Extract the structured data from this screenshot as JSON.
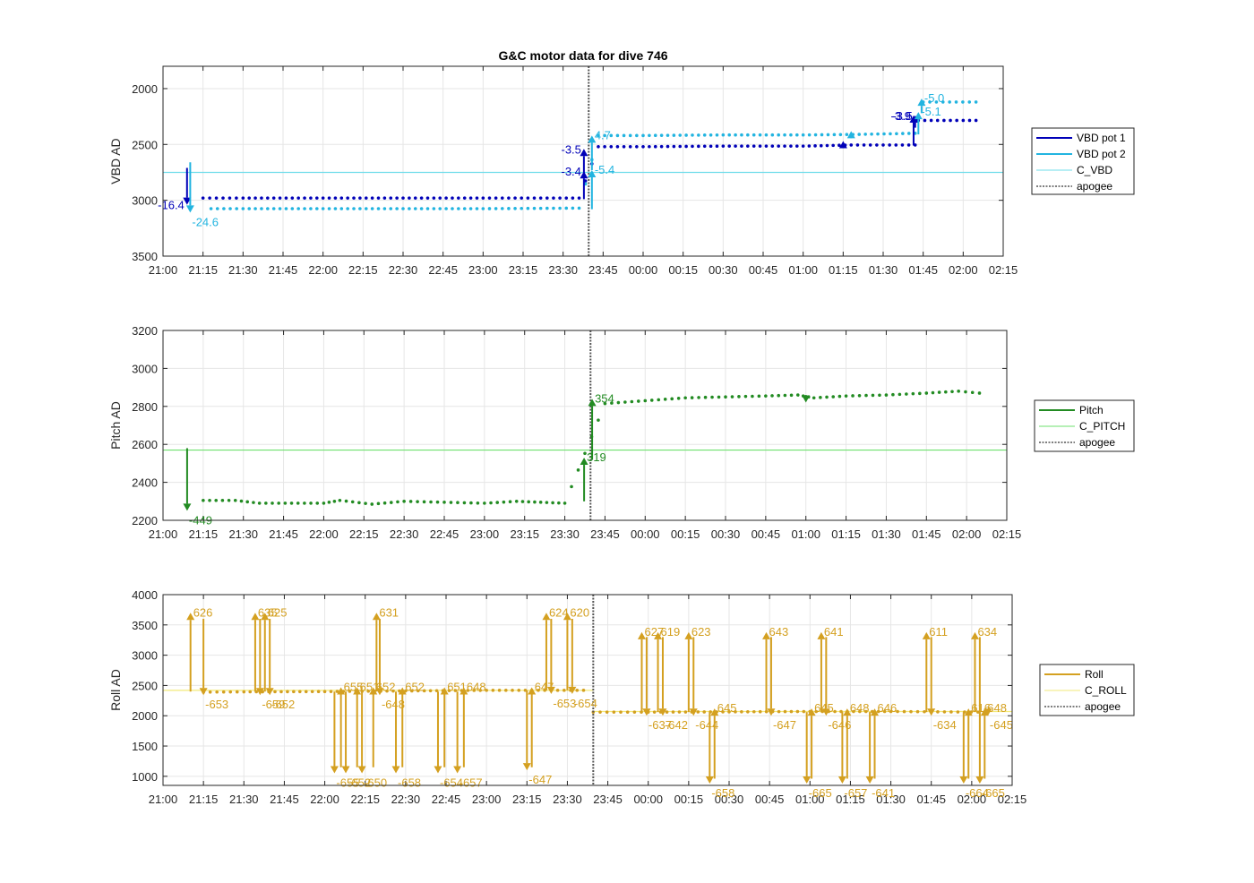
{
  "figure_title": "G&C motor data for dive 746",
  "colors": {
    "vbd1": "#0000b8",
    "vbd2": "#22b4e0",
    "c_vbd": "#6fdcea",
    "pitch": "#228b22",
    "c_pitch": "#6ee06e",
    "roll": "#d4a020",
    "c_roll": "#f2ea7a",
    "apogee": "#555555"
  },
  "chart_data": [
    {
      "type": "line",
      "title": "G&C motor data for dive 746",
      "xlabel": "",
      "ylabel": "VBD AD",
      "xlim_hours": [
        21.0,
        26.25
      ],
      "ylim": [
        1800,
        3500
      ],
      "y_reversed": true,
      "yticks": [
        2000,
        2500,
        3000,
        3500
      ],
      "xtick_labels": [
        "21:00",
        "21:15",
        "21:30",
        "21:45",
        "22:00",
        "22:15",
        "22:30",
        "22:45",
        "23:00",
        "23:15",
        "23:30",
        "23:45",
        "00:00",
        "00:15",
        "00:30",
        "00:45",
        "01:00",
        "01:15",
        "01:30",
        "01:45",
        "02:00",
        "02:15"
      ],
      "grid": true,
      "legend": {
        "placement": "right",
        "entries": [
          "VBD pot 1",
          "VBD pot 2",
          "C_VBD",
          "apogee"
        ]
      },
      "apogee_hours": 23.66,
      "reference_lines": [
        {
          "name": "C_VBD",
          "y": 2750
        }
      ],
      "series": [
        {
          "name": "VBD pot 1",
          "color_key": "vbd1",
          "points": [
            [
              21.25,
              2980
            ],
            [
              21.5,
              2980
            ],
            [
              22,
              2980
            ],
            [
              22.5,
              2980
            ],
            [
              23,
              2980
            ],
            [
              23.6,
              2980
            ],
            [
              23.72,
              2520
            ],
            [
              24,
              2520
            ],
            [
              24.5,
              2515
            ],
            [
              25,
              2515
            ],
            [
              25.3,
              2505
            ],
            [
              25.7,
              2505
            ],
            [
              25.72,
              2285
            ],
            [
              26.08,
              2285
            ]
          ]
        },
        {
          "name": "VBD pot 2",
          "color_key": "vbd2",
          "points": [
            [
              21.3,
              3075
            ],
            [
              21.5,
              3075
            ],
            [
              22,
              3075
            ],
            [
              22.5,
              3075
            ],
            [
              23,
              3075
            ],
            [
              23.6,
              3070
            ],
            [
              23.72,
              2420
            ],
            [
              24,
              2420
            ],
            [
              24.5,
              2415
            ],
            [
              25,
              2415
            ],
            [
              25.35,
              2410
            ],
            [
              25.7,
              2400
            ],
            [
              25.75,
              2120
            ],
            [
              26.08,
              2120
            ]
          ]
        }
      ],
      "arrows": [
        {
          "color_key": "vbd1",
          "x": 21.15,
          "y_from": 2710,
          "y_to": 3040,
          "label": "-16.4",
          "label_pos": "left"
        },
        {
          "color_key": "vbd2",
          "x": 21.17,
          "y_from": 2660,
          "y_to": 3110,
          "label": "-24.6",
          "label_pos": "below"
        },
        {
          "color_key": "vbd1",
          "x": 23.63,
          "y_from": 2990,
          "y_to": 2740,
          "label": "-3.4",
          "label_pos": "left"
        },
        {
          "color_key": "vbd1",
          "x": 23.63,
          "y_from": 2760,
          "y_to": 2540,
          "label": "-3.5",
          "label_pos": "left"
        },
        {
          "color_key": "vbd2",
          "x": 23.68,
          "y_from": 3080,
          "y_to": 2730,
          "label": "-5.4",
          "label_pos": "right"
        },
        {
          "color_key": "vbd2",
          "x": 23.68,
          "y_from": 2730,
          "y_to": 2420,
          "label": "4.7",
          "label_pos": "right"
        },
        {
          "color_key": "vbd1",
          "x": 25.25,
          "y_from": 2510,
          "y_to": 2470,
          "label": "",
          "label_pos": "none"
        },
        {
          "color_key": "vbd2",
          "x": 25.3,
          "y_from": 2420,
          "y_to": 2380,
          "label": "",
          "label_pos": "none"
        },
        {
          "color_key": "vbd1",
          "x": 25.69,
          "y_from": 2510,
          "y_to": 2240,
          "label": "-3.9",
          "label_pos": "left"
        },
        {
          "color_key": "vbd1",
          "x": 25.7,
          "y_from": 2350,
          "y_to": 2240,
          "label": "-3.5",
          "label_pos": "left"
        },
        {
          "color_key": "vbd2",
          "x": 25.72,
          "y_from": 2410,
          "y_to": 2210,
          "label": "-5.1",
          "label_pos": "right"
        },
        {
          "color_key": "vbd2",
          "x": 25.74,
          "y_from": 2220,
          "y_to": 2090,
          "label": "-5.0",
          "label_pos": "right"
        }
      ]
    },
    {
      "type": "line",
      "title": "",
      "xlabel": "",
      "ylabel": "Pitch AD",
      "xlim_hours": [
        21.0,
        26.25
      ],
      "ylim": [
        2200,
        3200
      ],
      "y_reversed": false,
      "yticks": [
        2200,
        2400,
        2600,
        2800,
        3000,
        3200
      ],
      "xtick_labels": [
        "21:00",
        "21:15",
        "21:30",
        "21:45",
        "22:00",
        "22:15",
        "22:30",
        "22:45",
        "23:00",
        "23:15",
        "23:30",
        "23:45",
        "00:00",
        "00:15",
        "00:30",
        "00:45",
        "01:00",
        "01:15",
        "01:30",
        "01:45",
        "02:00",
        "02:15"
      ],
      "grid": true,
      "legend": {
        "placement": "right",
        "entries": [
          "Pitch",
          "C_PITCH",
          "apogee"
        ]
      },
      "apogee_hours": 23.66,
      "reference_lines": [
        {
          "name": "C_PITCH",
          "y": 2570
        }
      ],
      "series": [
        {
          "name": "Pitch",
          "color_key": "pitch",
          "points": [
            [
              21.25,
              2305
            ],
            [
              21.45,
              2305
            ],
            [
              21.6,
              2290
            ],
            [
              22,
              2290
            ],
            [
              22.1,
              2305
            ],
            [
              22.3,
              2285
            ],
            [
              22.5,
              2300
            ],
            [
              22.75,
              2295
            ],
            [
              23,
              2290
            ],
            [
              23.2,
              2300
            ],
            [
              23.5,
              2290
            ],
            [
              23.75,
              2815
            ],
            [
              24,
              2830
            ],
            [
              24.25,
              2845
            ],
            [
              24.5,
              2850
            ],
            [
              24.75,
              2855
            ],
            [
              24.95,
              2860
            ],
            [
              25.05,
              2845
            ],
            [
              25.25,
              2855
            ],
            [
              25.5,
              2860
            ],
            [
              25.75,
              2870
            ],
            [
              25.95,
              2880
            ],
            [
              26.08,
              2870
            ]
          ]
        }
      ],
      "arrows": [
        {
          "color_key": "pitch",
          "x": 21.15,
          "y_from": 2580,
          "y_to": 2250,
          "label": "-449",
          "label_pos": "below"
        },
        {
          "color_key": "pitch",
          "x": 23.62,
          "y_from": 2300,
          "y_to": 2530,
          "label": "319",
          "label_pos": "right"
        },
        {
          "color_key": "pitch",
          "x": 23.67,
          "y_from": 2520,
          "y_to": 2840,
          "label": "354",
          "label_pos": "right"
        },
        {
          "color_key": "pitch",
          "x": 25.0,
          "y_from": 2860,
          "y_to": 2820,
          "label": "",
          "label_pos": "none"
        }
      ]
    },
    {
      "type": "line",
      "title": "",
      "xlabel": "",
      "ylabel": "Roll AD",
      "xlim_hours": [
        21.0,
        26.25
      ],
      "ylim": [
        850,
        4000
      ],
      "y_reversed": false,
      "yticks": [
        1000,
        1500,
        2000,
        2500,
        3000,
        3500,
        4000
      ],
      "xtick_labels": [
        "21:00",
        "21:15",
        "21:30",
        "21:45",
        "22:00",
        "22:15",
        "22:30",
        "22:45",
        "23:00",
        "23:15",
        "23:30",
        "23:45",
        "00:00",
        "00:15",
        "00:30",
        "00:45",
        "01:00",
        "01:15",
        "01:30",
        "01:45",
        "02:00",
        "02:15"
      ],
      "grid": true,
      "legend": {
        "placement": "right",
        "entries": [
          "Roll",
          "C_ROLL",
          "apogee"
        ]
      },
      "apogee_hours": 23.66,
      "reference_lines": [
        {
          "name": "C_ROLL",
          "y": 2420,
          "x_range": [
            21.0,
            23.66
          ]
        },
        {
          "name": "C_ROLL",
          "y": 2070,
          "x_range": [
            23.66,
            26.25
          ]
        }
      ],
      "series": [
        {
          "name": "Roll",
          "color_key": "roll",
          "points": [
            [
              21.25,
              2390
            ],
            [
              21.5,
              2395
            ],
            [
              22,
              2400
            ],
            [
              22.5,
              2410
            ],
            [
              23,
              2420
            ],
            [
              23.6,
              2420
            ]
          ]
        },
        {
          "name": "Roll",
          "color_key": "roll",
          "points": [
            [
              23.66,
              2060
            ],
            [
              24,
              2060
            ],
            [
              24.5,
              2065
            ],
            [
              25,
              2070
            ],
            [
              25.5,
              2070
            ],
            [
              26.08,
              2060
            ]
          ]
        }
      ],
      "arrows": [
        {
          "x": 21.17,
          "y_from": 2400,
          "y_to": 3700,
          "label": "626",
          "label_pos": "right"
        },
        {
          "x": 21.25,
          "y_from": 3600,
          "y_to": 2340,
          "label": "-653",
          "label_pos": "below"
        },
        {
          "x": 21.57,
          "y_from": 2400,
          "y_to": 3700,
          "label": "635",
          "label_pos": "right"
        },
        {
          "x": 21.6,
          "y_from": 3600,
          "y_to": 2340,
          "label": "-659",
          "label_pos": "below"
        },
        {
          "x": 21.63,
          "y_from": 2400,
          "y_to": 3700,
          "label": "625",
          "label_pos": "right"
        },
        {
          "x": 21.66,
          "y_from": 3600,
          "y_to": 2340,
          "label": "-652",
          "label_pos": "below"
        },
        {
          "x": 22.06,
          "y_from": 2400,
          "y_to": 1050,
          "label": "-655",
          "label_pos": "below"
        },
        {
          "x": 22.1,
          "y_from": 1150,
          "y_to": 2470,
          "label": "655",
          "label_pos": "right"
        },
        {
          "x": 22.13,
          "y_from": 2400,
          "y_to": 1050,
          "label": "-652",
          "label_pos": "below"
        },
        {
          "x": 22.2,
          "y_from": 1150,
          "y_to": 2470,
          "label": "651",
          "label_pos": "right"
        },
        {
          "x": 22.23,
          "y_from": 2400,
          "y_to": 1050,
          "label": "-650",
          "label_pos": "below"
        },
        {
          "x": 22.3,
          "y_from": 1150,
          "y_to": 2470,
          "label": "652",
          "label_pos": "right"
        },
        {
          "x": 22.32,
          "y_from": 2400,
          "y_to": 3700,
          "label": "631",
          "label_pos": "right"
        },
        {
          "x": 22.34,
          "y_from": 3600,
          "y_to": 2340,
          "label": "-648",
          "label_pos": "below"
        },
        {
          "x": 22.44,
          "y_from": 2400,
          "y_to": 1050,
          "label": "-658",
          "label_pos": "below"
        },
        {
          "x": 22.48,
          "y_from": 1150,
          "y_to": 2470,
          "label": "652",
          "label_pos": "right"
        },
        {
          "x": 22.7,
          "y_from": 2400,
          "y_to": 1050,
          "label": "-654",
          "label_pos": "below"
        },
        {
          "x": 22.74,
          "y_from": 1150,
          "y_to": 2470,
          "label": "651",
          "label_pos": "right"
        },
        {
          "x": 22.82,
          "y_from": 2400,
          "y_to": 1050,
          "label": "-657",
          "label_pos": "below"
        },
        {
          "x": 22.86,
          "y_from": 1150,
          "y_to": 2470,
          "label": "648",
          "label_pos": "right"
        },
        {
          "x": 23.25,
          "y_from": 2420,
          "y_to": 1100,
          "label": "-647",
          "label_pos": "below"
        },
        {
          "x": 23.28,
          "y_from": 1150,
          "y_to": 2470,
          "label": "647",
          "label_pos": "right"
        },
        {
          "x": 23.37,
          "y_from": 2420,
          "y_to": 3700,
          "label": "624",
          "label_pos": "right"
        },
        {
          "x": 23.4,
          "y_from": 3600,
          "y_to": 2360,
          "label": "-653",
          "label_pos": "below"
        },
        {
          "x": 23.5,
          "y_from": 2420,
          "y_to": 3700,
          "label": "620",
          "label_pos": "right"
        },
        {
          "x": 23.53,
          "y_from": 3600,
          "y_to": 2360,
          "label": "-654",
          "label_pos": "below"
        },
        {
          "x": 23.96,
          "y_from": 2060,
          "y_to": 3380,
          "label": "627",
          "label_pos": "right"
        },
        {
          "x": 23.99,
          "y_from": 3300,
          "y_to": 2000,
          "label": "-637",
          "label_pos": "below"
        },
        {
          "x": 24.06,
          "y_from": 2060,
          "y_to": 3380,
          "label": "619",
          "label_pos": "right"
        },
        {
          "x": 24.09,
          "y_from": 3300,
          "y_to": 2000,
          "label": "-642",
          "label_pos": "below"
        },
        {
          "x": 24.25,
          "y_from": 2060,
          "y_to": 3380,
          "label": "623",
          "label_pos": "right"
        },
        {
          "x": 24.28,
          "y_from": 3300,
          "y_to": 2000,
          "label": "-644",
          "label_pos": "below"
        },
        {
          "x": 24.38,
          "y_from": 2060,
          "y_to": 880,
          "label": "-658",
          "label_pos": "below"
        },
        {
          "x": 24.41,
          "y_from": 960,
          "y_to": 2120,
          "label": "645",
          "label_pos": "right"
        },
        {
          "x": 24.73,
          "y_from": 2060,
          "y_to": 3380,
          "label": "643",
          "label_pos": "right"
        },
        {
          "x": 24.76,
          "y_from": 3300,
          "y_to": 2000,
          "label": "-647",
          "label_pos": "below"
        },
        {
          "x": 24.98,
          "y_from": 2060,
          "y_to": 880,
          "label": "-665",
          "label_pos": "below"
        },
        {
          "x": 25.01,
          "y_from": 960,
          "y_to": 2120,
          "label": "645",
          "label_pos": "right"
        },
        {
          "x": 25.07,
          "y_from": 2060,
          "y_to": 3380,
          "label": "641",
          "label_pos": "right"
        },
        {
          "x": 25.1,
          "y_from": 3300,
          "y_to": 2000,
          "label": "-646",
          "label_pos": "below"
        },
        {
          "x": 25.2,
          "y_from": 2060,
          "y_to": 880,
          "label": "-657",
          "label_pos": "below"
        },
        {
          "x": 25.23,
          "y_from": 960,
          "y_to": 2120,
          "label": "648",
          "label_pos": "right"
        },
        {
          "x": 25.37,
          "y_from": 2060,
          "y_to": 880,
          "label": "-641",
          "label_pos": "below"
        },
        {
          "x": 25.4,
          "y_from": 960,
          "y_to": 2120,
          "label": "646",
          "label_pos": "right"
        },
        {
          "x": 25.72,
          "y_from": 2060,
          "y_to": 3380,
          "label": "611",
          "label_pos": "right"
        },
        {
          "x": 25.75,
          "y_from": 3300,
          "y_to": 2000,
          "label": "-634",
          "label_pos": "below"
        },
        {
          "x": 25.95,
          "y_from": 2060,
          "y_to": 880,
          "label": "-664",
          "label_pos": "below"
        },
        {
          "x": 25.98,
          "y_from": 960,
          "y_to": 2120,
          "label": "616",
          "label_pos": "right"
        },
        {
          "x": 26.02,
          "y_from": 2060,
          "y_to": 3380,
          "label": "634",
          "label_pos": "right"
        },
        {
          "x": 26.05,
          "y_from": 3300,
          "y_to": 880,
          "label": "-665",
          "label_pos": "below"
        },
        {
          "x": 26.08,
          "y_from": 960,
          "y_to": 2120,
          "label": "648",
          "label_pos": "right"
        },
        {
          "x": 26.1,
          "y_from": 2120,
          "y_to": 2000,
          "label": "-645",
          "label_pos": "below"
        }
      ]
    }
  ]
}
